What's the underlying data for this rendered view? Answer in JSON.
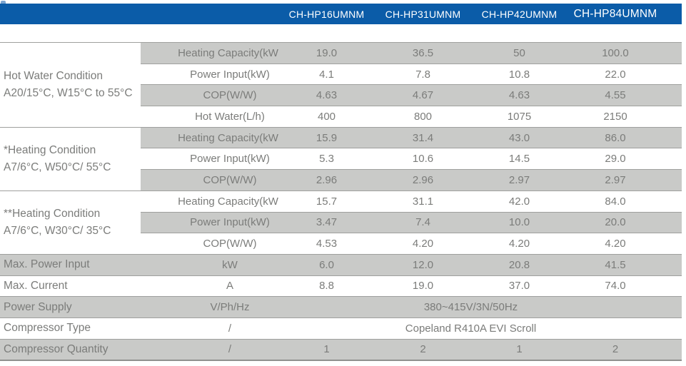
{
  "header": {
    "models": [
      "CH-HP16UMNM",
      "CH-HP31UMNM",
      "CH-HP42UMNM",
      "CH-HP84UMNM"
    ]
  },
  "groups": [
    {
      "label_lines": [
        "Hot Water Condition",
        "A20/15°C, W15°C to 55°C"
      ],
      "rows": [
        {
          "param": "Heating Capacity(kW)",
          "values": [
            "19.0",
            "36.5",
            "50",
            "100.0"
          ]
        },
        {
          "param": "Power Input(kW)",
          "values": [
            "4.1",
            "7.8",
            "10.8",
            "22.0"
          ]
        },
        {
          "param": "COP(W/W)",
          "values": [
            "4.63",
            "4.67",
            "4.63",
            "4.55"
          ]
        },
        {
          "param": "Hot Water(L/h)",
          "values": [
            "400",
            "800",
            "1075",
            "2150"
          ]
        }
      ]
    },
    {
      "label_lines": [
        "*Heating Condition",
        "A7/6°C, W50°C/ 55°C"
      ],
      "rows": [
        {
          "param": "Heating Capacity(kW)",
          "values": [
            "15.9",
            "31.4",
            "43.0",
            "86.0"
          ]
        },
        {
          "param": "Power Input(kW)",
          "values": [
            "5.3",
            "10.6",
            "14.5",
            "29.0"
          ]
        },
        {
          "param": "COP(W/W)",
          "values": [
            "2.96",
            "2.96",
            "2.97",
            "2.97"
          ]
        }
      ]
    },
    {
      "label_lines": [
        "**Heating Condition",
        "A7/6°C, W30°C/ 35°C"
      ],
      "rows": [
        {
          "param": "Heating Capacity(kW)",
          "values": [
            "15.7",
            "31.1",
            "42.0",
            "84.0"
          ]
        },
        {
          "param": "Power Input(kW)",
          "values": [
            "3.47",
            "7.4",
            "10.0",
            "20.0"
          ]
        },
        {
          "param": "COP(W/W)",
          "values": [
            "4.53",
            "4.20",
            "4.20",
            "4.20"
          ]
        }
      ]
    }
  ],
  "bottom": [
    {
      "label": "Max. Power Input",
      "unit": "kW",
      "values": [
        "6.0",
        "12.0",
        "20.8",
        "41.5"
      ]
    },
    {
      "label": "Max. Current",
      "unit": "A",
      "values": [
        "8.8",
        "19.0",
        "37.0",
        "74.0"
      ]
    },
    {
      "label": "Power Supply",
      "unit": "V/Ph/Hz",
      "span_value": "380~415V/3N/50Hz"
    },
    {
      "label": "Compressor Type",
      "unit": "/",
      "span_value": "Copeland R410A EVI Scroll"
    },
    {
      "label": "Compressor Quantity",
      "unit": "/",
      "values": [
        "1",
        "2",
        "1",
        "2"
      ]
    }
  ],
  "colors": {
    "header_bg": "#0b5ca8",
    "row_gray": "#c9cac8",
    "row_white": "#ffffff",
    "line": "#9fa09e",
    "text": "#7b7c7a",
    "header_text": "#ffffff"
  }
}
